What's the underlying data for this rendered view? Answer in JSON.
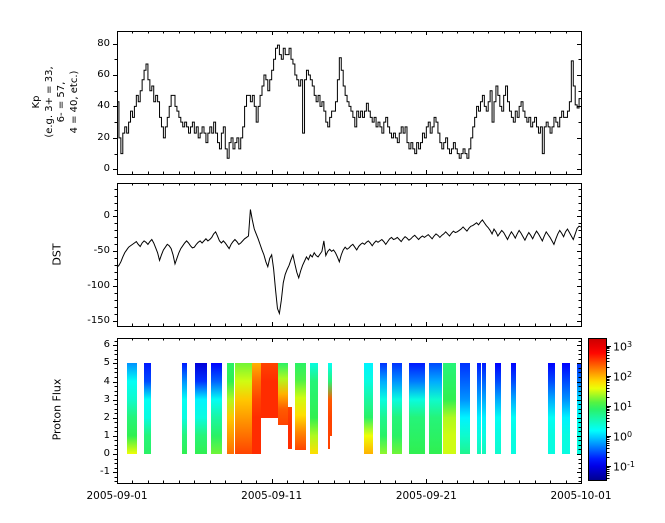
{
  "figure": {
    "background": "#ffffff",
    "line_color": "#000000",
    "x_axis": {
      "range_days": [
        0,
        30
      ],
      "major_tick_days": [
        0,
        10,
        20,
        30
      ],
      "minor_interval_days": 1,
      "tick_labels": [
        "2005-09-01",
        "2005-09-11",
        "2005-09-21",
        "2005-10-01"
      ]
    }
  },
  "chart_data": [
    {
      "type": "line",
      "name": "kp_index",
      "style": "steps-post",
      "ylabel_lines": [
        "Kp",
        "(e.g. 3+ = 33,",
        "6- = 57,",
        "4 = 40, etc.)"
      ],
      "ylim": [
        -3,
        88
      ],
      "yticks": [
        0,
        20,
        40,
        60,
        80
      ],
      "y_minor_step": 10,
      "x_start_day": 0,
      "x_step_days": 0.125,
      "values": [
        43,
        20,
        10,
        23,
        27,
        23,
        30,
        37,
        33,
        40,
        47,
        43,
        50,
        57,
        63,
        67,
        57,
        50,
        53,
        43,
        47,
        43,
        33,
        27,
        20,
        27,
        33,
        40,
        47,
        47,
        40,
        37,
        33,
        30,
        27,
        30,
        27,
        23,
        27,
        30,
        23,
        27,
        20,
        23,
        27,
        23,
        17,
        23,
        27,
        23,
        30,
        23,
        17,
        13,
        23,
        27,
        13,
        7,
        17,
        20,
        13,
        17,
        20,
        13,
        20,
        27,
        40,
        47,
        47,
        43,
        47,
        40,
        30,
        40,
        47,
        53,
        60,
        57,
        50,
        57,
        63,
        70,
        77,
        79,
        73,
        70,
        77,
        73,
        73,
        77,
        70,
        67,
        60,
        57,
        53,
        57,
        23,
        57,
        63,
        60,
        57,
        53,
        47,
        43,
        47,
        40,
        43,
        37,
        30,
        27,
        33,
        37,
        37,
        43,
        57,
        71,
        63,
        53,
        47,
        43,
        40,
        37,
        33,
        27,
        37,
        33,
        37,
        33,
        37,
        42,
        37,
        33,
        30,
        33,
        27,
        30,
        27,
        23,
        30,
        33,
        27,
        23,
        20,
        23,
        20,
        17,
        23,
        27,
        23,
        27,
        17,
        13,
        17,
        13,
        10,
        17,
        13,
        17,
        23,
        20,
        27,
        30,
        23,
        27,
        33,
        30,
        23,
        17,
        13,
        17,
        20,
        13,
        10,
        13,
        17,
        13,
        10,
        7,
        10,
        13,
        10,
        7,
        13,
        20,
        27,
        33,
        40,
        37,
        43,
        47,
        40,
        37,
        43,
        50,
        30,
        43,
        53,
        47,
        40,
        37,
        47,
        53,
        43,
        37,
        33,
        30,
        37,
        33,
        40,
        43,
        37,
        33,
        30,
        33,
        27,
        30,
        33,
        27,
        23,
        27,
        10,
        27,
        30,
        27,
        23,
        27,
        33,
        30,
        27,
        33,
        37,
        33,
        33,
        37,
        43,
        69,
        53,
        41,
        39,
        45
      ]
    },
    {
      "type": "line",
      "name": "dst_index",
      "ylabel": "DST",
      "ylim": [
        -157,
        48
      ],
      "yticks": [
        0,
        -50,
        -100,
        -150
      ],
      "y_minor_step": 10,
      "x_start_day": 0,
      "x_step_days": 0.125,
      "values": [
        -73,
        -70,
        -65,
        -58,
        -52,
        -48,
        -44,
        -42,
        -40,
        -38,
        -36,
        -40,
        -43,
        -38,
        -35,
        -37,
        -40,
        -36,
        -33,
        -38,
        -45,
        -52,
        -63,
        -55,
        -48,
        -44,
        -40,
        -42,
        -46,
        -55,
        -68,
        -60,
        -52,
        -46,
        -42,
        -38,
        -35,
        -38,
        -42,
        -45,
        -44,
        -40,
        -37,
        -35,
        -38,
        -35,
        -32,
        -35,
        -33,
        -30,
        -25,
        -22,
        -28,
        -35,
        -38,
        -35,
        -38,
        -42,
        -46,
        -40,
        -36,
        -33,
        -36,
        -40,
        -38,
        -35,
        -32,
        -30,
        -28,
        10,
        -5,
        -18,
        -25,
        -32,
        -40,
        -48,
        -55,
        -65,
        -72,
        -60,
        -55,
        -75,
        -105,
        -132,
        -139,
        -120,
        -95,
        -83,
        -76,
        -70,
        -62,
        -55,
        -68,
        -80,
        -88,
        -78,
        -70,
        -64,
        -58,
        -62,
        -55,
        -58,
        -52,
        -56,
        -58,
        -54,
        -50,
        -35,
        -56,
        -50,
        -47,
        -50,
        -48,
        -52,
        -58,
        -65,
        -55,
        -48,
        -44,
        -47,
        -45,
        -42,
        -40,
        -44,
        -48,
        -43,
        -40,
        -38,
        -40,
        -37,
        -35,
        -38,
        -42,
        -38,
        -35,
        -37,
        -35,
        -33,
        -36,
        -40,
        -36,
        -32,
        -30,
        -33,
        -32,
        -30,
        -33,
        -36,
        -32,
        -29,
        -31,
        -34,
        -32,
        -29,
        -27,
        -30,
        -33,
        -30,
        -28,
        -30,
        -28,
        -26,
        -29,
        -32,
        -28,
        -25,
        -27,
        -30,
        -27,
        -25,
        -22,
        -25,
        -28,
        -24,
        -21,
        -23,
        -22,
        -20,
        -18,
        -15,
        -18,
        -21,
        -17,
        -14,
        -13,
        -11,
        -9,
        -12,
        -8,
        -5,
        -9,
        -13,
        -16,
        -20,
        -25,
        -18,
        -22,
        -28,
        -24,
        -20,
        -23,
        -28,
        -33,
        -27,
        -22,
        -26,
        -31,
        -25,
        -20,
        -24,
        -29,
        -34,
        -28,
        -23,
        -27,
        -32,
        -26,
        -21,
        -25,
        -30,
        -35,
        -28,
        -22,
        -26,
        -30,
        -35,
        -40,
        -32,
        -25,
        -20,
        -24,
        -29,
        -22,
        -18,
        -23,
        -28,
        -33,
        -25,
        -17,
        -14,
        -15
      ]
    },
    {
      "type": "heatmap",
      "name": "proton_flux",
      "ylabel": "Proton Flux",
      "ylim": [
        -1.6,
        6.4
      ],
      "yticks": [
        -1,
        0,
        1,
        2,
        3,
        4,
        5,
        6
      ],
      "y_minor_step": 0.25,
      "colormap": "jet",
      "colorbar": {
        "scale": "log10",
        "display_range_log10": [
          -1.5,
          3.25
        ],
        "tick_exponents": [
          3,
          2,
          1,
          0,
          -1
        ],
        "tick_label_base": "10"
      },
      "bars": [
        {
          "day_start": 0.65,
          "day_end": 1.27,
          "y_top": 5,
          "y_bottom": 0,
          "log10_flux_top_to_bottom": [
            -0.3,
            0.2,
            0.4,
            0.8,
            1.0,
            1.6
          ]
        },
        {
          "day_start": 1.72,
          "day_end": 2.2,
          "y_top": 5,
          "y_bottom": 0,
          "log10_flux_top_to_bottom": [
            -0.8,
            -0.6,
            0.2,
            0.3,
            0.8,
            0.9
          ]
        },
        {
          "day_start": 4.18,
          "day_end": 4.5,
          "y_top": 5,
          "y_bottom": 0,
          "log10_flux_top_to_bottom": [
            -0.8,
            -0.3,
            0.2,
            0.3,
            0.8,
            1.0
          ]
        },
        {
          "day_start": 5.04,
          "day_end": 5.8,
          "y_top": 5,
          "y_bottom": 0,
          "log10_flux_top_to_bottom": [
            -1.1,
            -0.7,
            0.1,
            0.3,
            0.8,
            1.0
          ]
        },
        {
          "day_start": 6.1,
          "day_end": 6.8,
          "y_top": 5,
          "y_bottom": 0,
          "log10_flux_top_to_bottom": [
            -0.9,
            -0.5,
            0.2,
            0.6,
            0.9,
            1.2
          ]
        },
        {
          "day_start": 7.1,
          "day_end": 7.6,
          "y_top": 5,
          "y_bottom": 0,
          "log10_flux_top_to_bottom": [
            0.9,
            1.0,
            1.4,
            1.9,
            2.1,
            2.3
          ]
        },
        {
          "day_start": 7.6,
          "day_end": 8.7,
          "y_top": 5,
          "y_bottom": 0,
          "log10_flux_top_to_bottom": [
            1.2,
            1.5,
            1.9,
            2.1,
            2.3,
            2.5
          ]
        },
        {
          "day_start": 8.7,
          "day_end": 9.3,
          "y_top": 5,
          "y_bottom": 0,
          "log10_flux_top_to_bottom": [
            2.0,
            2.3,
            2.5,
            2.6,
            2.6,
            2.6
          ]
        },
        {
          "day_start": 9.3,
          "day_end": 10.42,
          "y_top": 5,
          "y_bottom": 2.0,
          "log10_flux_top_to_bottom": [
            2.5,
            2.6,
            2.6,
            2.6
          ]
        },
        {
          "day_start": 10.42,
          "day_end": 11.05,
          "y_top": 5,
          "y_bottom": 1.6,
          "log10_flux_top_to_bottom": [
            0.9,
            1.4,
            2.0,
            2.4,
            2.5
          ]
        },
        {
          "day_start": 11.05,
          "day_end": 11.3,
          "y_top": 2.6,
          "y_bottom": 0.25,
          "log10_flux_top_to_bottom": [
            2.5,
            2.6,
            2.6
          ]
        },
        {
          "day_start": 11.5,
          "day_end": 12.25,
          "y_top": 5,
          "y_bottom": 0.2,
          "log10_flux_top_to_bottom": [
            0.9,
            1.1,
            1.5,
            1.8,
            2.2,
            2.5
          ]
        },
        {
          "day_start": 12.5,
          "day_end": 13.0,
          "y_top": 5,
          "y_bottom": 0,
          "log10_flux_top_to_bottom": [
            0.3,
            0.8,
            0.9,
            1.0,
            1.4,
            1.8
          ]
        },
        {
          "day_start": 13.65,
          "day_end": 13.92,
          "y_top": 5,
          "y_bottom": 1.0,
          "log10_flux_top_to_bottom": [
            0.2,
            0.8,
            2.4,
            2.5,
            2.5
          ]
        },
        {
          "day_start": 13.65,
          "day_end": 13.78,
          "y_top": 1.0,
          "y_bottom": 0.3,
          "log10_flux_top_to_bottom": [
            2.5,
            2.5
          ]
        },
        {
          "day_start": 15.98,
          "day_end": 16.55,
          "y_top": 5,
          "y_bottom": 0,
          "log10_flux_top_to_bottom": [
            0.1,
            0.3,
            0.6,
            0.9,
            1.6,
            2.0
          ]
        },
        {
          "day_start": 16.98,
          "day_end": 17.45,
          "y_top": 5,
          "y_bottom": 0,
          "log10_flux_top_to_bottom": [
            -0.7,
            -0.2,
            0.3,
            0.7,
            0.9,
            1.3
          ]
        },
        {
          "day_start": 17.8,
          "day_end": 18.4,
          "y_top": 5,
          "y_bottom": 0,
          "log10_flux_top_to_bottom": [
            -0.7,
            -0.3,
            0.3,
            0.8,
            0.9,
            1.2
          ]
        },
        {
          "day_start": 18.85,
          "day_end": 19.9,
          "y_top": 5,
          "y_bottom": 0,
          "log10_flux_top_to_bottom": [
            -0.8,
            -0.4,
            0.3,
            0.8,
            0.9,
            1.0
          ]
        },
        {
          "day_start": 20.15,
          "day_end": 21.0,
          "y_top": 5,
          "y_bottom": 0,
          "log10_flux_top_to_bottom": [
            -0.6,
            -0.2,
            0.4,
            0.8,
            0.9,
            1.0
          ]
        },
        {
          "day_start": 21.1,
          "day_end": 21.95,
          "y_top": 5,
          "y_bottom": 0,
          "log10_flux_top_to_bottom": [
            0.8,
            0.9,
            1.0,
            1.4,
            1.5,
            1.5
          ]
        },
        {
          "day_start": 22.2,
          "day_end": 22.85,
          "y_top": 5,
          "y_bottom": 0,
          "log10_flux_top_to_bottom": [
            -0.7,
            -0.5,
            -0.3,
            0.1,
            0.4,
            0.7
          ]
        },
        {
          "day_start": 23.3,
          "day_end": 23.52,
          "y_top": 5,
          "y_bottom": 0,
          "log10_flux_top_to_bottom": [
            -0.8,
            -0.5,
            -0.2,
            0.1,
            0.3,
            0.5
          ]
        },
        {
          "day_start": 23.62,
          "day_end": 23.85,
          "y_top": 5,
          "y_bottom": 0,
          "log10_flux_top_to_bottom": [
            -0.8,
            -0.5,
            -0.2,
            0.1,
            0.3,
            0.5
          ]
        },
        {
          "day_start": 24.45,
          "day_end": 24.8,
          "y_top": 5,
          "y_bottom": 0,
          "log10_flux_top_to_bottom": [
            -0.9,
            -0.6,
            -0.2,
            0.2,
            0.3,
            0.4
          ]
        },
        {
          "day_start": 25.5,
          "day_end": 25.8,
          "y_top": 5,
          "y_bottom": 0,
          "log10_flux_top_to_bottom": [
            -0.9,
            -0.6,
            -0.2,
            0.2,
            0.3,
            0.3
          ]
        },
        {
          "day_start": 27.86,
          "day_end": 28.3,
          "y_top": 5,
          "y_bottom": 0,
          "log10_flux_top_to_bottom": [
            -0.9,
            -0.6,
            -0.2,
            0.2,
            0.3,
            0.3
          ]
        },
        {
          "day_start": 28.8,
          "day_end": 29.3,
          "y_top": 5,
          "y_bottom": 0,
          "log10_flux_top_to_bottom": [
            -0.9,
            -0.6,
            -0.3,
            0.1,
            0.3,
            0.3
          ]
        },
        {
          "day_start": 29.75,
          "day_end": 30.0,
          "y_top": 5,
          "y_bottom": 0,
          "log10_flux_top_to_bottom": [
            -0.7,
            -0.4,
            0.0,
            0.2,
            0.3,
            0.3
          ]
        }
      ]
    }
  ]
}
